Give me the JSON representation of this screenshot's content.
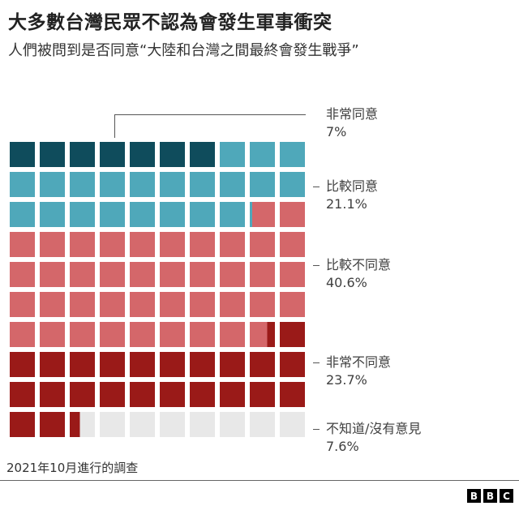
{
  "header": {
    "title": "大多數台灣民眾不認為會發生軍事衝突",
    "subtitle": "人們被問到是否同意“大陸和台灣之間最終會發生戰爭”"
  },
  "footer": {
    "source": "2021年10月進行的調查",
    "logo": [
      "B",
      "B",
      "C"
    ]
  },
  "colors": {
    "strongly_agree": "#0f4c5c",
    "agree": "#4fa8ba",
    "disagree": "#d4676a",
    "strongly_disagree": "#9a1a18",
    "no_opinion": "#e8e8e8"
  },
  "legend": [
    {
      "label": "非常同意",
      "value": "7%"
    },
    {
      "label": "比較同意",
      "value": "21.1%"
    },
    {
      "label": "比較不同意",
      "value": "40.6%"
    },
    {
      "label": "非常不同意",
      "value": "23.7%"
    },
    {
      "label": "不知道/沒有意見",
      "value": "7.6%"
    }
  ],
  "chart_data": {
    "type": "waffle",
    "title": "大多數台灣民眾不認為會發生軍事衝突",
    "subtitle": "人們被問到是否同意“大陸和台灣之間最終會發生戰爭”",
    "grid": {
      "rows": 10,
      "cols": 10
    },
    "categories": [
      "非常同意",
      "比較同意",
      "比較不同意",
      "非常不同意",
      "不知道/沒有意見"
    ],
    "values": [
      7,
      21.1,
      40.6,
      23.7,
      7.6
    ],
    "colors": [
      "#0f4c5c",
      "#4fa8ba",
      "#d4676a",
      "#9a1a18",
      "#e8e8e8"
    ],
    "unit": "%",
    "note": "2021年10月進行的調查"
  }
}
